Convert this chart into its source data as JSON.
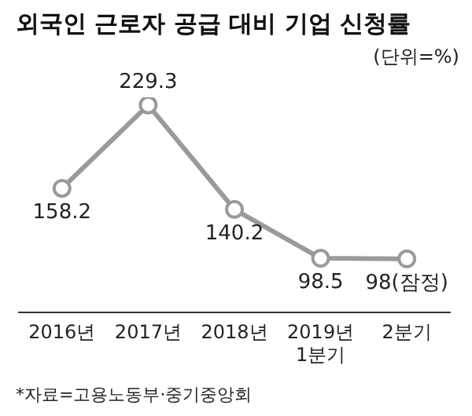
{
  "chart_data": {
    "type": "line",
    "title": "외국인 근로자 공급 대비 기업 신청률",
    "subtitle": "(단위=%)",
    "categories": [
      "2016년",
      "2017년",
      "2018년",
      "2019년\n1분기",
      "2분기"
    ],
    "series": [
      {
        "color": "#9a9a9a",
        "values": [
          158.2,
          229.3,
          140.2,
          98.5,
          98
        ],
        "value_labels": [
          "158.2",
          "229.3",
          "140.2",
          "98.5",
          "98(잠정)"
        ]
      }
    ],
    "marker": "circle",
    "grid": false,
    "legend": false,
    "tick_labels": "x",
    "annotations": [
      "*자료=고용노동부·중기중앙회"
    ]
  }
}
